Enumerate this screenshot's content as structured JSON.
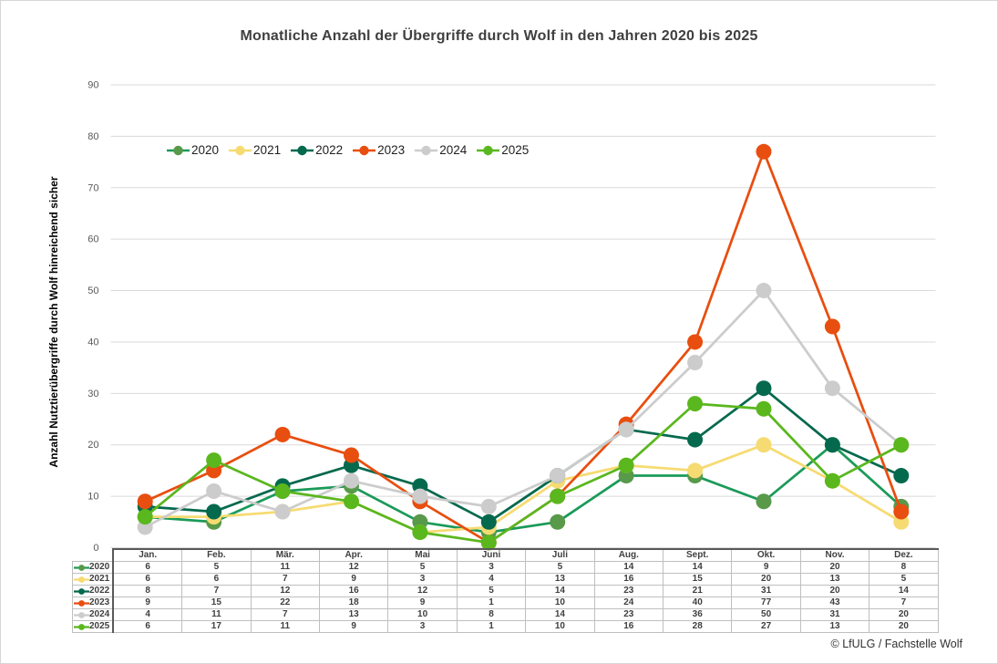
{
  "page": {
    "footer_credit": "© LfULG / Fachstelle Wolf"
  },
  "colors": {
    "gridline": "#dadada",
    "tick_label": "#595959",
    "table_border_thin": "#bfbfbf",
    "table_border_thick": "#595959",
    "title_text": "#3f3f3f"
  },
  "chart_data": {
    "type": "line",
    "title": "Monatliche Anzahl der Übergriffe durch Wolf in den Jahren 2020 bis 2025",
    "ylabel": "Anzahl Nutztierübergriffe durch Wolf hinreichend sicher",
    "xlabel": "",
    "ylim": [
      0,
      90
    ],
    "ytick_step": 10,
    "grid": "horizontal-only",
    "legend_position": "inside-top-left",
    "data_table_shown": true,
    "categories": [
      "Jan.",
      "Feb.",
      "Mär.",
      "Apr.",
      "Mai",
      "Juni",
      "Juli",
      "Aug.",
      "Sept.",
      "Okt.",
      "Nov.",
      "Dez."
    ],
    "series": [
      {
        "name": "2020",
        "line_color": "#1b9a59",
        "marker_color": "#58994a",
        "values": [
          6,
          5,
          11,
          12,
          5,
          3,
          5,
          14,
          14,
          9,
          20,
          8
        ]
      },
      {
        "name": "2021",
        "line_color": "#f6db72",
        "marker_color": "#f6db72",
        "values": [
          6,
          6,
          7,
          9,
          3,
          4,
          13,
          16,
          15,
          20,
          13,
          5
        ]
      },
      {
        "name": "2022",
        "line_color": "#05694d",
        "marker_color": "#05694d",
        "values": [
          8,
          7,
          12,
          16,
          12,
          5,
          14,
          23,
          21,
          31,
          20,
          14
        ]
      },
      {
        "name": "2023",
        "line_color": "#e84e0f",
        "marker_color": "#e84e0f",
        "values": [
          9,
          15,
          22,
          18,
          9,
          1,
          10,
          24,
          40,
          77,
          43,
          7
        ]
      },
      {
        "name": "2024",
        "line_color": "#cccccc",
        "marker_color": "#cccccc",
        "values": [
          4,
          11,
          7,
          13,
          10,
          8,
          14,
          23,
          36,
          50,
          31,
          20
        ]
      },
      {
        "name": "2025",
        "line_color": "#5ab71e",
        "marker_color": "#5ab71e",
        "values": [
          6,
          17,
          11,
          9,
          3,
          1,
          10,
          16,
          28,
          27,
          13,
          20
        ]
      }
    ]
  }
}
